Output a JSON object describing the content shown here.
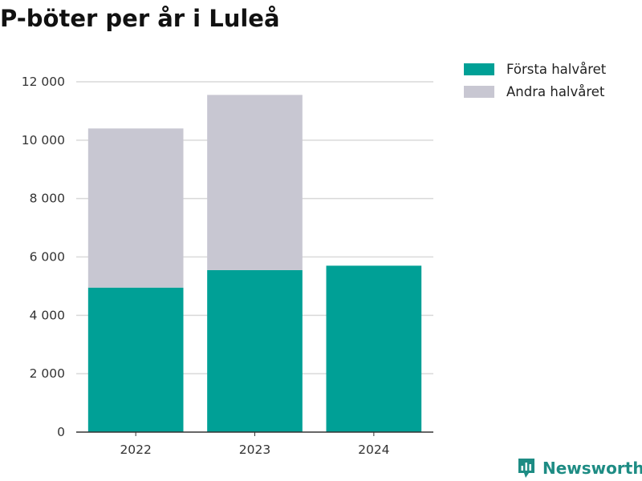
{
  "chart_data": {
    "type": "bar",
    "stacked": true,
    "title": "P-böter per år i Luleå",
    "categories": [
      "2022",
      "2023",
      "2024"
    ],
    "series": [
      {
        "name": "Första halvåret",
        "color": "#00a096",
        "values": [
          4950,
          5550,
          5700
        ]
      },
      {
        "name": "Andra halvåret",
        "color": "#c8c7d2",
        "values": [
          5450,
          6000,
          null
        ]
      }
    ],
    "ylim": [
      0,
      12000
    ],
    "yticks": [
      0,
      2000,
      4000,
      6000,
      8000,
      10000,
      12000
    ],
    "ytick_labels": [
      "0",
      "2 000",
      "4 000",
      "6 000",
      "8 000",
      "10 000",
      "12 000"
    ],
    "grid": true,
    "legend_position": "top-right",
    "xlabel": "",
    "ylabel": ""
  },
  "brand": {
    "name": "Newsworthy",
    "icon": "newsworthy-logo-icon",
    "color": "#1e8c84"
  }
}
